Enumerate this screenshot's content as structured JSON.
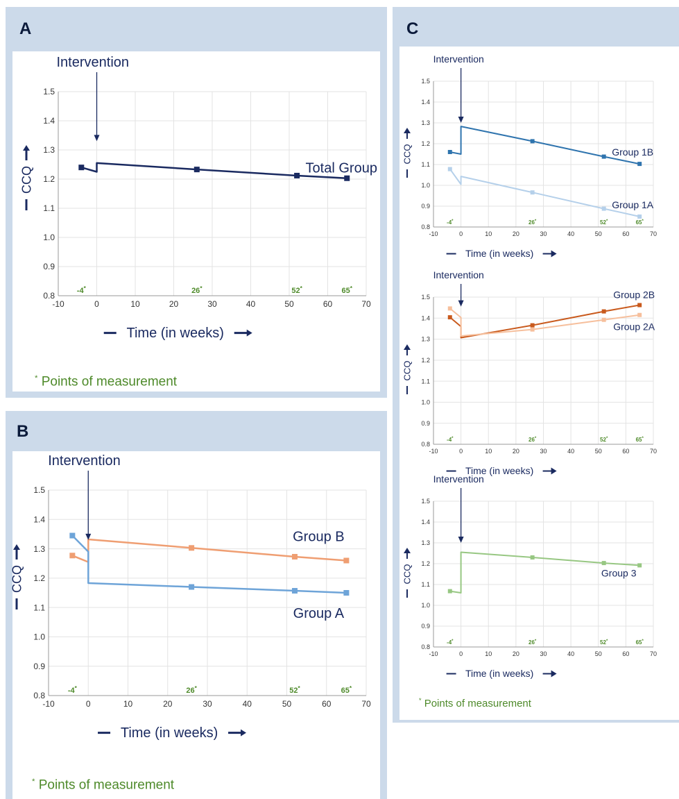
{
  "panels": {
    "A": {
      "letter": "A",
      "footnote": "Points of measurement"
    },
    "B": {
      "letter": "B",
      "footnote": "Points of measurement"
    },
    "C": {
      "letter": "C",
      "footnote": "Points of measurement"
    }
  },
  "colors": {
    "panel_bg": "#ccdaea",
    "total": "#1a2a60",
    "groupA": "#6ea4d8",
    "groupB": "#ef9e72",
    "group1B": "#2f74ae",
    "group1A": "#b5d0ea",
    "group2B": "#c95a1d",
    "group2A": "#f6bf9c",
    "group3": "#97c782",
    "measurement": "#4e8a2a",
    "annotation": "#1a2a60",
    "grid": "#e3e3e3"
  },
  "chart_data": [
    {
      "id": "A",
      "type": "line",
      "annotation": "Intervention",
      "xlabel": "Time (in weeks)",
      "ylabel": "CCQ",
      "xlim": [
        -10,
        70
      ],
      "ylim": [
        0.8,
        1.5
      ],
      "xticks": [
        "-10",
        "0",
        "10",
        "20",
        "30",
        "40",
        "50",
        "60",
        "70"
      ],
      "yticks": [
        "0.8",
        "0.9",
        "1.0",
        "1.1",
        "1.2",
        "1.3",
        "1.4",
        "1.5"
      ],
      "measurement_points": [
        "-4",
        "26",
        "52",
        "65"
      ],
      "grid": true,
      "series": [
        {
          "name": "Total Group",
          "colorKey": "total",
          "line": [
            [
              -4,
              1.24
            ],
            [
              0,
              1.225
            ],
            [
              0,
              1.255
            ],
            [
              26,
              1.233
            ],
            [
              52,
              1.212
            ],
            [
              65,
              1.203
            ]
          ],
          "markers": [
            [
              -4,
              1.24
            ],
            [
              26,
              1.233
            ],
            [
              52,
              1.212
            ],
            [
              65,
              1.203
            ]
          ]
        }
      ]
    },
    {
      "id": "B",
      "type": "line",
      "annotation": "Intervention",
      "xlabel": "Time (in weeks)",
      "ylabel": "CCQ",
      "xlim": [
        -10,
        70
      ],
      "ylim": [
        0.8,
        1.5
      ],
      "xticks": [
        "-10",
        "0",
        "10",
        "20",
        "30",
        "40",
        "50",
        "60",
        "70"
      ],
      "yticks": [
        "0.8",
        "0.9",
        "1.0",
        "1.1",
        "1.2",
        "1.3",
        "1.4",
        "1.5"
      ],
      "measurement_points": [
        "-4",
        "26",
        "52",
        "65"
      ],
      "grid": true,
      "series": [
        {
          "name": "Group B",
          "colorKey": "groupB",
          "line": [
            [
              -4,
              1.277
            ],
            [
              0,
              1.255
            ],
            [
              0,
              1.332
            ],
            [
              26,
              1.303
            ],
            [
              52,
              1.273
            ],
            [
              65,
              1.26
            ]
          ],
          "markers": [
            [
              -4,
              1.277
            ],
            [
              26,
              1.303
            ],
            [
              52,
              1.273
            ],
            [
              65,
              1.26
            ]
          ]
        },
        {
          "name": "Group A",
          "colorKey": "groupA",
          "line": [
            [
              -4,
              1.345
            ],
            [
              0,
              1.29
            ],
            [
              0,
              1.183
            ],
            [
              26,
              1.17
            ],
            [
              52,
              1.157
            ],
            [
              65,
              1.15
            ]
          ],
          "markers": [
            [
              -4,
              1.345
            ],
            [
              26,
              1.17
            ],
            [
              52,
              1.157
            ],
            [
              65,
              1.15
            ]
          ]
        }
      ]
    },
    {
      "id": "C1",
      "type": "line",
      "annotation": "Intervention",
      "xlabel": "Time (in weeks)",
      "ylabel": "CCQ",
      "xlim": [
        -10,
        70
      ],
      "ylim": [
        0.8,
        1.5
      ],
      "xticks": [
        "-10",
        "0",
        "10",
        "20",
        "30",
        "40",
        "50",
        "60",
        "70"
      ],
      "yticks": [
        "0.8",
        "0.9",
        "1.0",
        "1.1",
        "1.2",
        "1.3",
        "1.4",
        "1.5"
      ],
      "measurement_points": [
        "-4",
        "26",
        "52",
        "65"
      ],
      "grid": true,
      "series": [
        {
          "name": "Group 1B",
          "colorKey": "group1B",
          "line": [
            [
              -4,
              1.16
            ],
            [
              0,
              1.15
            ],
            [
              0,
              1.283
            ],
            [
              26,
              1.212
            ],
            [
              52,
              1.138
            ],
            [
              65,
              1.103
            ]
          ],
          "markers": [
            [
              -4,
              1.16
            ],
            [
              26,
              1.212
            ],
            [
              52,
              1.138
            ],
            [
              65,
              1.103
            ]
          ]
        },
        {
          "name": "Group 1A",
          "colorKey": "group1A",
          "line": [
            [
              -4,
              1.078
            ],
            [
              0,
              1.005
            ],
            [
              0,
              1.043
            ],
            [
              26,
              0.966
            ],
            [
              52,
              0.888
            ],
            [
              65,
              0.85
            ]
          ],
          "markers": [
            [
              -4,
              1.078
            ],
            [
              26,
              0.966
            ],
            [
              52,
              0.888
            ],
            [
              65,
              0.85
            ]
          ]
        }
      ]
    },
    {
      "id": "C2",
      "type": "line",
      "annotation": "Intervention",
      "xlabel": "Time (in weeks)",
      "ylabel": "CCQ",
      "xlim": [
        -10,
        70
      ],
      "ylim": [
        0.8,
        1.5
      ],
      "xticks": [
        "-10",
        "0",
        "10",
        "20",
        "30",
        "40",
        "50",
        "60",
        "70"
      ],
      "yticks": [
        "0.8",
        "0.9",
        "1.0",
        "1.1",
        "1.2",
        "1.3",
        "1.4",
        "1.5"
      ],
      "measurement_points": [
        "-4",
        "26",
        "52",
        "65"
      ],
      "grid": true,
      "series": [
        {
          "name": "Group 2B",
          "colorKey": "group2B",
          "line": [
            [
              -4,
              1.404
            ],
            [
              0,
              1.36
            ],
            [
              0,
              1.307
            ],
            [
              26,
              1.366
            ],
            [
              52,
              1.432
            ],
            [
              65,
              1.462
            ]
          ],
          "markers": [
            [
              -4,
              1.404
            ],
            [
              26,
              1.366
            ],
            [
              52,
              1.432
            ],
            [
              65,
              1.462
            ]
          ]
        },
        {
          "name": "Group 2A",
          "colorKey": "group2A",
          "line": [
            [
              -4,
              1.446
            ],
            [
              0,
              1.403
            ],
            [
              0,
              1.315
            ],
            [
              26,
              1.346
            ],
            [
              52,
              1.392
            ],
            [
              65,
              1.415
            ]
          ],
          "markers": [
            [
              -4,
              1.446
            ],
            [
              26,
              1.346
            ],
            [
              52,
              1.392
            ],
            [
              65,
              1.415
            ]
          ]
        }
      ]
    },
    {
      "id": "C3",
      "type": "line",
      "annotation": "Intervention",
      "xlabel": "Time (in weeks)",
      "ylabel": "CCQ",
      "xlim": [
        -10,
        70
      ],
      "ylim": [
        0.8,
        1.5
      ],
      "xticks": [
        "-10",
        "0",
        "10",
        "20",
        "30",
        "40",
        "50",
        "60",
        "70"
      ],
      "yticks": [
        "0.8",
        "0.9",
        "1.0",
        "1.1",
        "1.2",
        "1.3",
        "1.4",
        "1.5"
      ],
      "measurement_points": [
        "-4",
        "26",
        "52",
        "65"
      ],
      "grid": true,
      "series": [
        {
          "name": "Group 3",
          "colorKey": "group3",
          "line": [
            [
              -4,
              1.068
            ],
            [
              0,
              1.06
            ],
            [
              0,
              1.255
            ],
            [
              26,
              1.23
            ],
            [
              52,
              1.203
            ],
            [
              65,
              1.192
            ]
          ],
          "markers": [
            [
              -4,
              1.068
            ],
            [
              26,
              1.23
            ],
            [
              52,
              1.203
            ],
            [
              65,
              1.192
            ]
          ]
        }
      ]
    }
  ]
}
